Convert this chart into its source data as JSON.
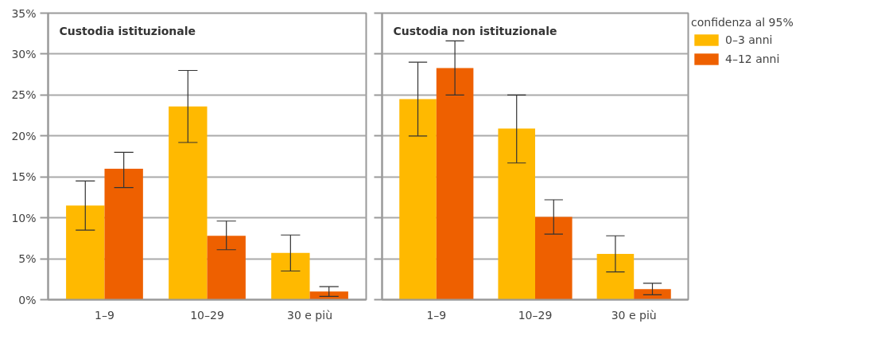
{
  "chart_data": [
    {
      "type": "bar",
      "title": "Custodia istituzionale",
      "categories": [
        "1–9",
        "10–29",
        "30 e più"
      ],
      "series": [
        {
          "color": "#ffb900",
          "values": [
            11.5,
            23.6,
            5.7
          ],
          "errors": [
            [
              8.5,
              14.5
            ],
            [
              19.2,
              28.0
            ],
            [
              3.5,
              7.9
            ]
          ]
        },
        {
          "color": "#ee6000",
          "values": [
            16.0,
            7.8,
            1.0
          ],
          "errors": [
            [
              13.7,
              18.0
            ],
            [
              6.1,
              9.6
            ],
            [
              0.4,
              1.6
            ]
          ]
        }
      ],
      "ylim": [
        0,
        35
      ],
      "yticks": [
        {
          "value": 0,
          "label": "0%"
        },
        {
          "value": 5,
          "label": "5%"
        },
        {
          "value": 10,
          "label": "10%"
        },
        {
          "value": 15,
          "label": "15%"
        },
        {
          "value": 20,
          "label": "20%"
        },
        {
          "value": 25,
          "label": "25%"
        },
        {
          "value": 30,
          "label": "30%"
        },
        {
          "value": 35,
          "label": "35%"
        }
      ],
      "grid": "y"
    },
    {
      "type": "bar",
      "title": "Custodia non istituzionale",
      "categories": [
        "1–9",
        "10–29",
        "30 e più"
      ],
      "series": [
        {
          "name": "0–3 anni",
          "color": "#ffb900",
          "values": [
            24.5,
            20.9,
            5.6
          ],
          "errors": [
            [
              20.0,
              29.0
            ],
            [
              16.7,
              25.0
            ],
            [
              3.4,
              7.8
            ]
          ]
        },
        {
          "name": "4–12 anni",
          "color": "#ee6000",
          "values": [
            28.3,
            10.1,
            1.3
          ],
          "errors": [
            [
              25.0,
              31.6
            ],
            [
              8.0,
              12.2
            ],
            [
              0.6,
              2.0
            ]
          ]
        }
      ],
      "ylim": [
        0,
        35
      ],
      "yticks": [
        0,
        5,
        10,
        15,
        20,
        25,
        30,
        35
      ],
      "grid": "y",
      "tick_labels": "x",
      "legend": "right",
      "legend_title": "confidenza al 95%"
    }
  ]
}
